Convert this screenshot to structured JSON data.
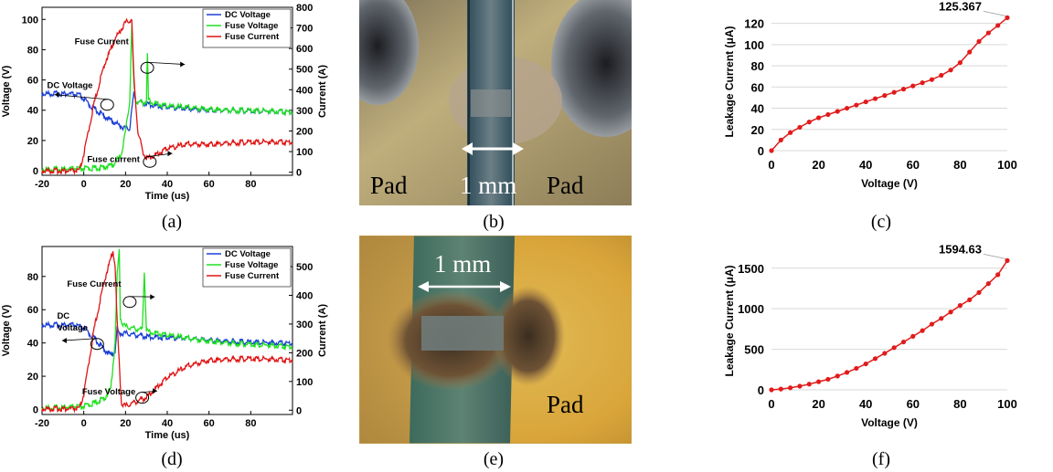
{
  "captions": [
    "(a)",
    "(b)",
    "(c)",
    "(d)",
    "(e)",
    "(f)"
  ],
  "photos": {
    "b": {
      "labels": {
        "pad_left": "Pad",
        "scale": "1 mm",
        "pad_right": "Pad"
      }
    },
    "e": {
      "labels": {
        "scale": "1 mm",
        "pad": "Pad"
      }
    }
  },
  "colors": {
    "dc_voltage": "#1a3fd6",
    "fuse_voltage": "#1fe01f",
    "fuse_current": "#e01414",
    "leakage": "#e11b1b",
    "grid": "#d9d9d9"
  },
  "chart_data": [
    {
      "id": "a",
      "type": "line",
      "xlabel": "Time (us)",
      "ylabel": "Voltage (V)",
      "y2label": "Current (A)",
      "xlim": [
        -20,
        100
      ],
      "ylim": [
        -3,
        108
      ],
      "y2lim": [
        -15,
        800
      ],
      "xticks": [
        -20,
        0,
        20,
        40,
        60,
        80
      ],
      "yticks": [
        0,
        20,
        40,
        60,
        80,
        100
      ],
      "y2ticks": [
        0,
        100,
        200,
        300,
        400,
        500,
        600,
        700,
        800
      ],
      "grid": false,
      "legend_position": "top-right",
      "series": [
        {
          "name": "DC Voltage",
          "axis": "left",
          "color": "#1a3fd6",
          "x": [
            -20,
            -8,
            -2,
            4,
            10,
            16,
            20,
            22,
            23,
            24,
            25,
            28,
            35,
            50,
            70,
            100
          ],
          "y": [
            50,
            50,
            49,
            41,
            35,
            30,
            27,
            27,
            40,
            50,
            45,
            44,
            42,
            40,
            39,
            38
          ]
        },
        {
          "name": "Fuse Voltage",
          "axis": "left",
          "color": "#1fe01f",
          "x": [
            -20,
            0,
            8,
            14,
            18,
            20,
            22,
            23,
            24,
            25,
            28,
            30,
            30.5,
            31,
            33,
            40,
            50,
            60,
            70,
            80,
            100
          ],
          "y": [
            0,
            0.5,
            1,
            3,
            10,
            25,
            45,
            95,
            55,
            45,
            44,
            45,
            76,
            46,
            44,
            42,
            41,
            40,
            39,
            39,
            38
          ]
        },
        {
          "name": "Fuse Current",
          "axis": "right",
          "color": "#e01414",
          "x": [
            -20,
            -2,
            0,
            5,
            10,
            15,
            20,
            22,
            23,
            24,
            26,
            27,
            28,
            30,
            35,
            40,
            50,
            60,
            70,
            80,
            100
          ],
          "y": [
            0,
            0,
            80,
            330,
            520,
            640,
            720,
            730,
            730,
            450,
            180,
            150,
            100,
            60,
            80,
            110,
            130,
            130,
            135,
            140,
            140
          ]
        }
      ],
      "annotations": [
        "Fuse Current",
        "DC Voltage",
        "Fuse current"
      ]
    },
    {
      "id": "c",
      "type": "line",
      "xlabel": "Voltage (V)",
      "ylabel": "Leakage Current (μA)",
      "xlim": [
        0,
        100
      ],
      "ylim": [
        0,
        130
      ],
      "xticks": [
        0,
        20,
        40,
        60,
        80,
        100
      ],
      "yticks": [
        0,
        20,
        40,
        60,
        80,
        100,
        120
      ],
      "grid": true,
      "color": "#e11b1b",
      "x": [
        0,
        4,
        8,
        12,
        16,
        20,
        24,
        28,
        32,
        36,
        40,
        44,
        48,
        52,
        56,
        60,
        64,
        68,
        72,
        76,
        80,
        84,
        88,
        92,
        96,
        100
      ],
      "y": [
        0,
        10,
        17,
        22,
        27,
        31,
        34,
        37,
        40,
        43,
        46,
        49,
        52,
        55,
        58,
        61,
        64,
        67,
        71,
        76,
        83,
        93,
        103,
        111,
        118,
        125.367
      ],
      "data_label": "125.367"
    },
    {
      "id": "d",
      "type": "line",
      "xlabel": "Time (us)",
      "ylabel": "Voltage (V)",
      "y2label": "Current (A)",
      "xlim": [
        -20,
        100
      ],
      "ylim": [
        -3,
        98
      ],
      "y2lim": [
        -15,
        570
      ],
      "xticks": [
        -20,
        0,
        20,
        40,
        60,
        80
      ],
      "yticks": [
        0,
        20,
        40,
        60,
        80
      ],
      "y2ticks": [
        0,
        100,
        200,
        300,
        400,
        500
      ],
      "grid": false,
      "legend_position": "top-right",
      "series": [
        {
          "name": "DC Voltage",
          "axis": "left",
          "color": "#1a3fd6",
          "x": [
            -20,
            -5,
            0,
            5,
            10,
            13,
            15,
            16,
            17,
            20,
            30,
            50,
            70,
            100
          ],
          "y": [
            50,
            50,
            48,
            42,
            35,
            32,
            34,
            48,
            45,
            45,
            43,
            42,
            40,
            39
          ]
        },
        {
          "name": "Fuse Voltage",
          "axis": "left",
          "color": "#1fe01f",
          "x": [
            -20,
            0,
            5,
            10,
            13,
            15,
            16,
            17,
            17.5,
            18,
            20,
            28,
            29,
            30,
            31,
            35,
            50,
            70,
            100
          ],
          "y": [
            0,
            1,
            3,
            6,
            12,
            40,
            80,
            95,
            55,
            52,
            49,
            47,
            82,
            47,
            46,
            45,
            42,
            39,
            37
          ]
        },
        {
          "name": "Fuse Current",
          "axis": "right",
          "color": "#e01414",
          "x": [
            -20,
            -2,
            0,
            5,
            10,
            14,
            15,
            16,
            18,
            20,
            25,
            30,
            40,
            50,
            60,
            80,
            100
          ],
          "y": [
            0,
            0,
            50,
            280,
            450,
            550,
            500,
            300,
            20,
            10,
            25,
            40,
            110,
            150,
            170,
            175,
            170
          ]
        }
      ],
      "annotations": [
        "Fuse Current",
        "DC",
        "Voltage",
        "Fuse Voltage"
      ]
    },
    {
      "id": "f",
      "type": "line",
      "xlabel": "Voltage (V)",
      "ylabel": "Leakage Current (μA)",
      "xlim": [
        0,
        100
      ],
      "ylim": [
        0,
        1700
      ],
      "xticks": [
        0,
        20,
        40,
        60,
        80,
        100
      ],
      "yticks": [
        0,
        500,
        1000,
        1500
      ],
      "grid": true,
      "color": "#e11b1b",
      "x": [
        0,
        4,
        8,
        12,
        16,
        20,
        24,
        28,
        32,
        36,
        40,
        44,
        48,
        52,
        56,
        60,
        64,
        68,
        72,
        76,
        80,
        84,
        88,
        92,
        96,
        100
      ],
      "y": [
        0,
        10,
        25,
        45,
        70,
        100,
        130,
        170,
        215,
        265,
        320,
        385,
        450,
        520,
        590,
        660,
        730,
        810,
        880,
        960,
        1040,
        1110,
        1200,
        1310,
        1420,
        1594.63
      ],
      "data_label": "1594.63"
    }
  ]
}
